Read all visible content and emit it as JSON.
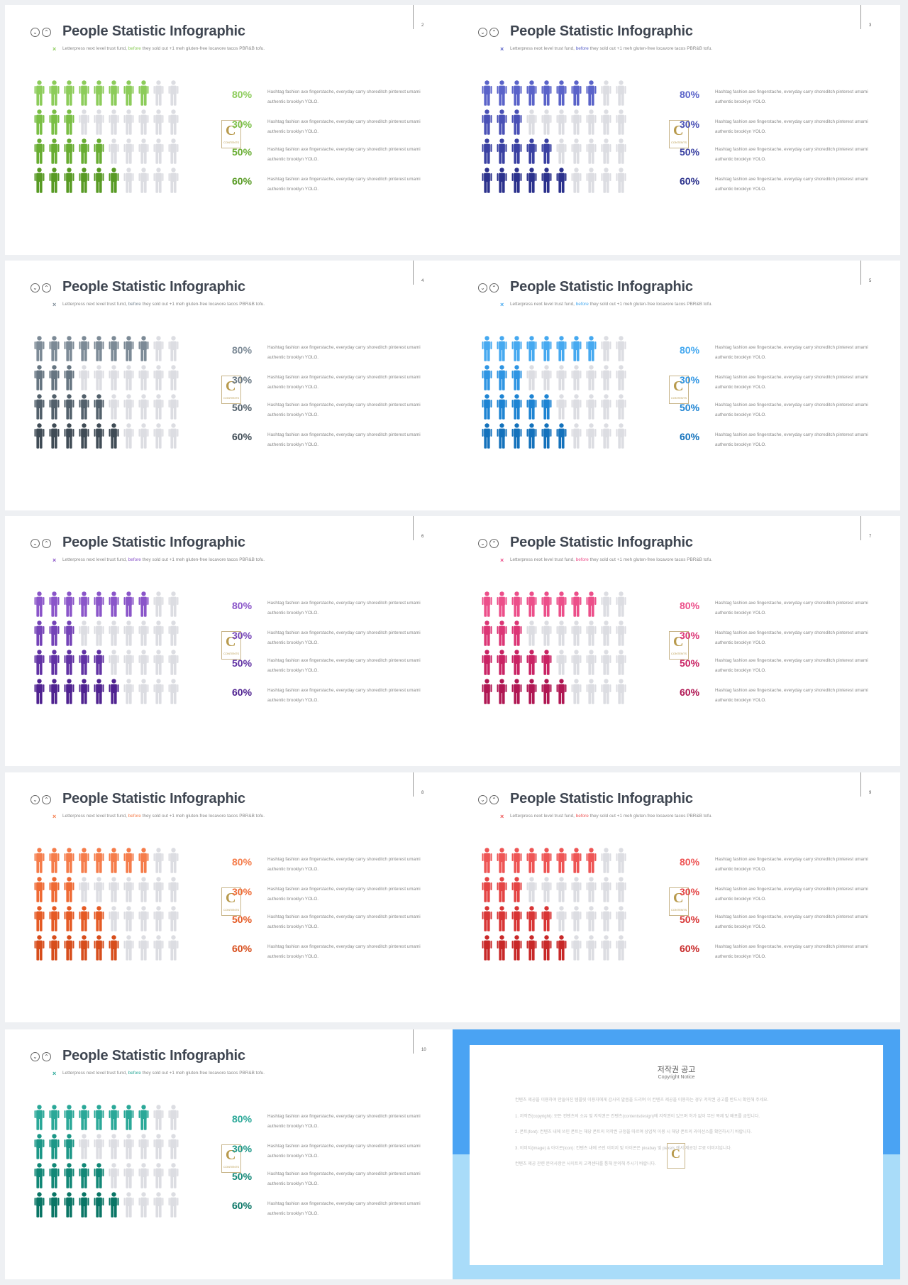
{
  "slide_title": "People Statistic Infographic",
  "subtitle": "Letterpress next level trust fund, before they sold out +1 meh gluten-free locavore tacos PBR&B tofu.",
  "subtitle_parts": {
    "before": "Letterpress next level trust fund, ",
    "highlight": "before",
    "after": " they sold out +1 meh gluten-free locavore tacos PBR&B tofu."
  },
  "close_mark": "×",
  "header_icons": [
    "chevron-down-icon",
    "chevron-up-icon"
  ],
  "description": "Hashtag fashion axe fingerstache, everyday carry shoreditch pinterest umami authentic brooklyn YOLO.",
  "stat_rows": [
    {
      "label": "80%",
      "filled": 8
    },
    {
      "label": "30%",
      "filled": 3
    },
    {
      "label": "50%",
      "filled": 5
    },
    {
      "label": "60%",
      "filled": 6
    }
  ],
  "people_per_row": 10,
  "inactive_color": "#dcdde2",
  "logo": {
    "letter": "C",
    "text": "CONTENTS"
  },
  "slides": [
    {
      "page": "2",
      "colors": [
        "#8ccc5a",
        "#7abf45",
        "#68ad32",
        "#579a23"
      ]
    },
    {
      "page": "3",
      "colors": [
        "#5a63c9",
        "#4a51b6",
        "#3a41a2",
        "#2b318c"
      ]
    },
    {
      "page": "4",
      "colors": [
        "#7c8a96",
        "#667581",
        "#52606b",
        "#3f4b55"
      ]
    },
    {
      "page": "5",
      "colors": [
        "#46a9f0",
        "#2f95e3",
        "#1e84d3",
        "#1472bc"
      ]
    },
    {
      "page": "6",
      "colors": [
        "#8a55c9",
        "#7443b7",
        "#6132a4",
        "#4f2290"
      ]
    },
    {
      "page": "7",
      "colors": [
        "#ec4f8a",
        "#dc3676",
        "#c92364",
        "#b01753"
      ]
    },
    {
      "page": "8",
      "colors": [
        "#f57c4a",
        "#ef6a34",
        "#e55a24",
        "#d74d1b"
      ]
    },
    {
      "page": "9",
      "colors": [
        "#ee5555",
        "#e44444",
        "#d83535",
        "#c82828"
      ]
    },
    {
      "page": "10",
      "colors": [
        "#2aa898",
        "#1c9787",
        "#118776",
        "#097565"
      ]
    }
  ],
  "copyright": {
    "title": "저작권 공고",
    "subtitle": "Copyright Notice",
    "paragraphs": [
      "컨텐츠 제공을 이용하여 만들어진 템플릿 이용자에게 감사의 말씀을 드리며 이 컨텐츠 제공을 이용하는 경우 저작권 공고를 반드시 확인해 주세요.",
      "1. 저작권(copyright): 모든 컨텐츠의 소유 및 저작권은 컨텐츠(contentsdesign)에 저작권이 있으며 허가 없이 무단 복제 및 배포를 금합니다.",
      "2. 폰트(font): 컨텐츠 내에 쓰인 폰트는 해당 폰트의 저작권 규정을 따르며 상업적 이용 시 해당 폰트의 라이선스를 확인하시기 바랍니다.",
      "3. 이미지(image) & 아이콘(icon): 컨텐츠 내에 쓰인 이미지 및 아이콘은 pixabay 및 pexels 에서 제공된 무료 이미지입니다.",
      "컨텐츠 제공 관련 문의사항은 사이트의 고객센터를 통해 문의해 주시기 바랍니다."
    ]
  }
}
